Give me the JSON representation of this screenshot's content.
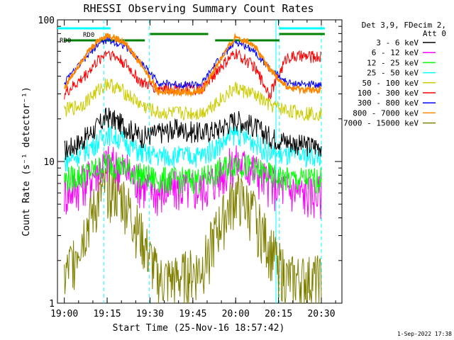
{
  "chart_data": {
    "type": "line",
    "title": "RHESSI Observing Summary Count Rates",
    "xlabel": "Start Time (25-Nov-16 18:57:42)",
    "ylabel": "Count Rate (s⁻¹ detector⁻¹)",
    "xlim": [
      18.96,
      20.62
    ],
    "ylim": [
      1,
      100
    ],
    "yscale": "log",
    "x_ticks": [
      {
        "value": 19.0,
        "label": "19:00"
      },
      {
        "value": 19.25,
        "label": "19:15"
      },
      {
        "value": 19.5,
        "label": "19:30"
      },
      {
        "value": 19.75,
        "label": "19:45"
      },
      {
        "value": 20.0,
        "label": "20:00"
      },
      {
        "value": 20.25,
        "label": "20:15"
      },
      {
        "value": 20.5,
        "label": "20:30"
      }
    ],
    "y_ticks": [
      {
        "value": 1,
        "label": "1"
      },
      {
        "value": 10,
        "label": "10"
      },
      {
        "value": 100,
        "label": "100"
      }
    ],
    "legend_title_lines": [
      "Det 3,9, FDecim 2,",
      "Att 0"
    ],
    "legend_position": "right",
    "footer": "1-Sep-2022 17:38",
    "annotations": [
      "RD0",
      "RD0"
    ],
    "series": [
      {
        "name": "3 - 6 keV",
        "color": "#000000",
        "x": [
          19.0,
          19.1,
          19.2,
          19.25,
          19.35,
          19.45,
          19.55,
          19.65,
          19.8,
          19.9,
          20.0,
          20.1,
          20.2,
          20.3,
          20.4,
          20.5
        ],
        "values": [
          12,
          14,
          18,
          21,
          18,
          15,
          16,
          17,
          16,
          17,
          20,
          18,
          15,
          14,
          13,
          13
        ]
      },
      {
        "name": "6 - 12 keV",
        "color": "#ff00ff",
        "x": [
          19.0,
          19.1,
          19.2,
          19.25,
          19.35,
          19.45,
          19.55,
          19.65,
          19.8,
          19.9,
          20.0,
          20.1,
          20.2,
          20.3,
          20.4,
          20.5
        ],
        "values": [
          6,
          7,
          9,
          10,
          9,
          7,
          6,
          6.5,
          6.5,
          8,
          10,
          9,
          7,
          6.5,
          6,
          6
        ]
      },
      {
        "name": "12 - 25 keV",
        "color": "#00ff00",
        "x": [
          19.0,
          19.1,
          19.2,
          19.25,
          19.35,
          19.45,
          19.55,
          19.65,
          19.8,
          19.9,
          20.0,
          20.1,
          20.2,
          20.3,
          20.4,
          20.5
        ],
        "values": [
          7.5,
          8,
          9,
          10,
          9,
          8,
          7.5,
          7.5,
          7.5,
          8.5,
          10,
          9,
          8,
          7.5,
          7.5,
          7.5
        ]
      },
      {
        "name": "25 - 50 keV",
        "color": "#00ffff",
        "x": [
          19.0,
          19.1,
          19.2,
          19.25,
          19.35,
          19.45,
          19.55,
          19.65,
          19.8,
          19.9,
          20.0,
          20.1,
          20.2,
          20.3,
          20.4,
          20.5
        ],
        "values": [
          10,
          11.5,
          14,
          16,
          14,
          11.5,
          11,
          11,
          11,
          13,
          16,
          14,
          11.5,
          11,
          11,
          11
        ]
      },
      {
        "name": "50 - 100 keV",
        "color": "#cccc00",
        "x": [
          19.0,
          19.1,
          19.2,
          19.25,
          19.35,
          19.45,
          19.55,
          19.65,
          19.8,
          19.9,
          20.0,
          20.1,
          20.2,
          20.3,
          20.4,
          20.5
        ],
        "values": [
          23,
          25,
          32,
          36,
          31,
          25,
          22,
          22,
          22,
          27,
          33,
          30,
          25,
          23,
          22,
          22
        ]
      },
      {
        "name": "100 - 300 keV",
        "color": "#ff0000",
        "x": [
          19.0,
          19.1,
          19.2,
          19.25,
          19.35,
          19.45,
          19.55,
          19.65,
          19.8,
          19.9,
          20.0,
          20.1,
          20.2,
          20.3,
          20.4,
          20.5
        ],
        "values": [
          30,
          38,
          52,
          60,
          50,
          36,
          33,
          33,
          32,
          45,
          58,
          48,
          30,
          55,
          55,
          55
        ]
      },
      {
        "name": "300 - 800 keV",
        "color": "#0000ff",
        "x": [
          19.0,
          19.1,
          19.2,
          19.25,
          19.35,
          19.45,
          19.55,
          19.65,
          19.8,
          19.9,
          20.0,
          20.1,
          20.2,
          20.3,
          20.4,
          20.5
        ],
        "values": [
          36,
          50,
          68,
          72,
          66,
          50,
          36,
          35,
          35,
          52,
          70,
          62,
          45,
          36,
          35,
          35
        ]
      },
      {
        "name": "800 - 7000 keV",
        "color": "#ff8800",
        "x": [
          19.0,
          19.1,
          19.2,
          19.25,
          19.35,
          19.45,
          19.55,
          19.65,
          19.8,
          19.9,
          20.0,
          20.1,
          20.2,
          20.3,
          20.4,
          20.5
        ],
        "values": [
          33,
          52,
          72,
          78,
          70,
          48,
          31,
          31,
          31,
          50,
          76,
          68,
          45,
          33,
          32,
          32
        ]
      },
      {
        "name": "7000 - 15000 keV",
        "color": "#808000",
        "x": [
          19.0,
          19.1,
          19.2,
          19.25,
          19.35,
          19.45,
          19.55,
          19.65,
          19.8,
          19.9,
          20.0,
          20.1,
          20.2,
          20.3,
          20.4,
          20.5
        ],
        "values": [
          1.5,
          3,
          5.5,
          7,
          5.5,
          3,
          1.5,
          1.5,
          1.8,
          3.5,
          6,
          4.5,
          2.5,
          1.5,
          1.5,
          1.5
        ]
      }
    ]
  }
}
